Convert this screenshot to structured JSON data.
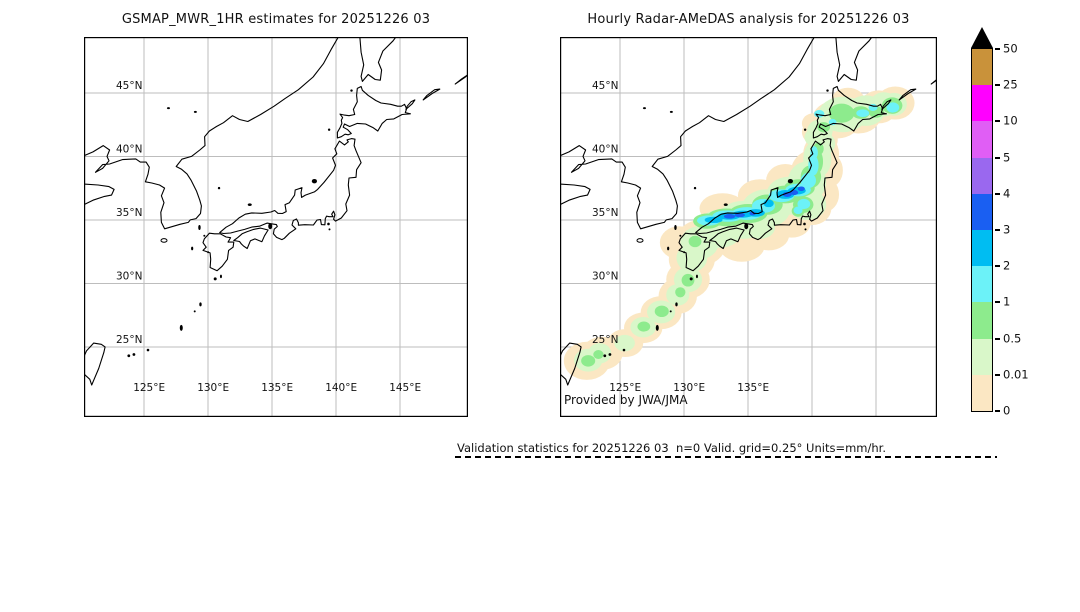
{
  "figure": {
    "panels": [
      {
        "title": "GSMAP_MWR_1HR estimates for 20251226 03",
        "has_precip": false,
        "credit": "",
        "lon_labels": [
          {
            "text": "125°E",
            "deg": 125
          },
          {
            "text": "130°E",
            "deg": 130
          },
          {
            "text": "135°E",
            "deg": 135
          },
          {
            "text": "140°E",
            "deg": 140
          },
          {
            "text": "145°E",
            "deg": 145
          }
        ],
        "lat_labels": [
          {
            "text": "45°N",
            "deg": 45
          },
          {
            "text": "40°N",
            "deg": 40
          },
          {
            "text": "35°N",
            "deg": 35
          },
          {
            "text": "30°N",
            "deg": 30
          },
          {
            "text": "25°N",
            "deg": 25
          }
        ]
      },
      {
        "title": "Hourly Radar-AMeDAS analysis for 20251226 03",
        "has_precip": true,
        "credit": "Provided by JWA/JMA",
        "lon_labels": [
          {
            "text": "125°E",
            "deg": 125
          },
          {
            "text": "130°E",
            "deg": 130
          },
          {
            "text": "135°E",
            "deg": 135
          }
        ],
        "lat_labels": [
          {
            "text": "45°N",
            "deg": 45
          },
          {
            "text": "40°N",
            "deg": 40
          },
          {
            "text": "35°N",
            "deg": 35
          },
          {
            "text": "30°N",
            "deg": 30
          },
          {
            "text": "25°N",
            "deg": 25
          }
        ]
      }
    ],
    "map": {
      "lon_gridlines": [
        125,
        130,
        135,
        140,
        145
      ],
      "lat_gridlines": [
        25,
        30,
        35,
        40,
        45
      ],
      "gridline_color": "#bdbdbd",
      "coastline_color": "#000000"
    },
    "colorbar": {
      "tick_labels": [
        "0",
        "0.01",
        "0.5",
        "1",
        "2",
        "3",
        "4",
        "5",
        "10",
        "25",
        "50"
      ],
      "segment_colors_bottom_to_top": [
        "#fbe7c3",
        "#d9f7c9",
        "#8deb8d",
        "#6cf2f8",
        "#00bdf2",
        "#1a5ff2",
        "#9a68ef",
        "#e05ef5",
        "#ff00ff",
        "#c9923a"
      ],
      "overflow_marker": "black-triangle",
      "overflow_marker_color": "#000000"
    },
    "footer": {
      "text": "Validation statistics for 20251226 03  n=0 Valid. grid=0.25° Units=mm/hr."
    }
  }
}
